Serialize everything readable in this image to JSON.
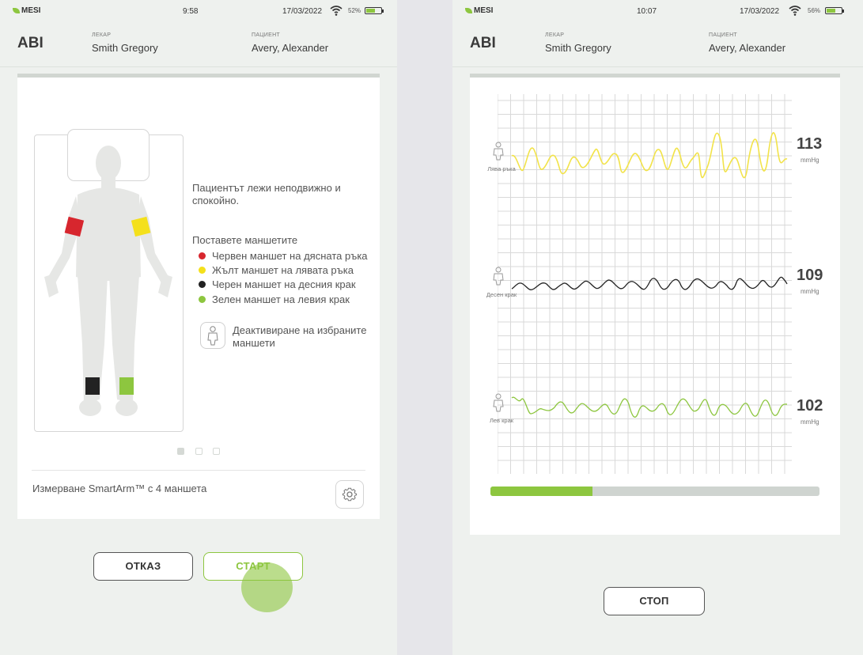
{
  "left": {
    "status": {
      "brand": "MESI",
      "time": "9:58",
      "date": "17/03/2022",
      "battery": "52%"
    },
    "header": {
      "title": "ABI",
      "doctor_label": "ЛЕКАР",
      "doctor": "Smith Gregory",
      "patient_label": "ПАЦИЕНТ",
      "patient": "Avery, Alexander"
    },
    "instruction": "Пациентът лежи неподвижно и спокойно.",
    "cuffs_title": "Поставете маншетите",
    "cuffs": [
      {
        "label": "Червен маншет на дясната ръка",
        "color": "#d7262e"
      },
      {
        "label": "Жълт маншет на лявата ръка",
        "color": "#f4e01b"
      },
      {
        "label": "Черен маншет на десния крак",
        "color": "#222222"
      },
      {
        "label": "Зелен маншет на левия крак",
        "color": "#8dc63f"
      }
    ],
    "deactivate": "Деактивиране на избраните маншети",
    "pager": {
      "current": 1,
      "total": 3
    },
    "measure_mode": "Измерване SmartArm™ с 4 маншета",
    "buttons": {
      "cancel": "ОТКАЗ",
      "start": "СТАРТ"
    }
  },
  "right": {
    "status": {
      "brand": "MESI",
      "time": "10:07",
      "date": "17/03/2022",
      "battery": "56%"
    },
    "header": {
      "title": "ABI",
      "doctor_label": "ЛЕКАР",
      "doctor": "Smith Gregory",
      "patient_label": "ПАЦИЕНТ",
      "patient": "Avery, Alexander"
    },
    "channels": [
      {
        "label": "Лява ръка",
        "value": "113",
        "unit": "mmHg",
        "color": "#f2e34a"
      },
      {
        "label": "Десен крак",
        "value": "109",
        "unit": "mmHg",
        "color": "#222222"
      },
      {
        "label": "Лев крак",
        "value": "102",
        "unit": "mmHg",
        "color": "#8dc63f"
      }
    ],
    "progress": 0.31,
    "buttons": {
      "stop": "СТОП"
    }
  },
  "colors": {
    "accent": "#8dc63f",
    "touch": "#8dc63f"
  },
  "icons": [
    "wifi-icon",
    "battery-icon",
    "gear-icon",
    "person-icon",
    "mesi-logo"
  ]
}
